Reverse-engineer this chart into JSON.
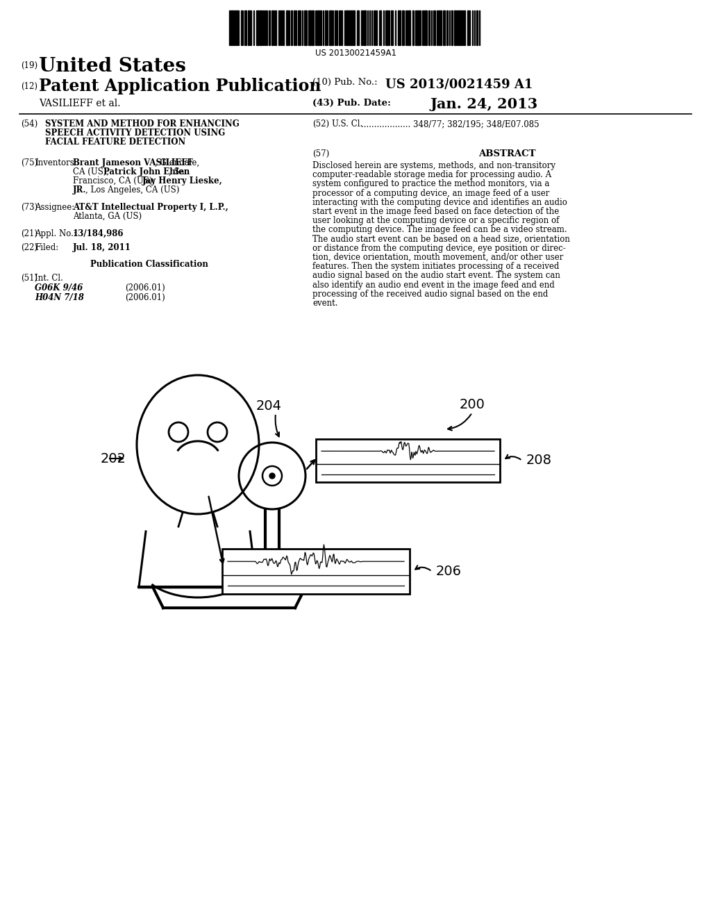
{
  "bg_color": "#ffffff",
  "barcode_text": "US 20130021459A1",
  "label200": "200",
  "label202": "202",
  "label204": "204",
  "label206": "206",
  "label208": "208"
}
